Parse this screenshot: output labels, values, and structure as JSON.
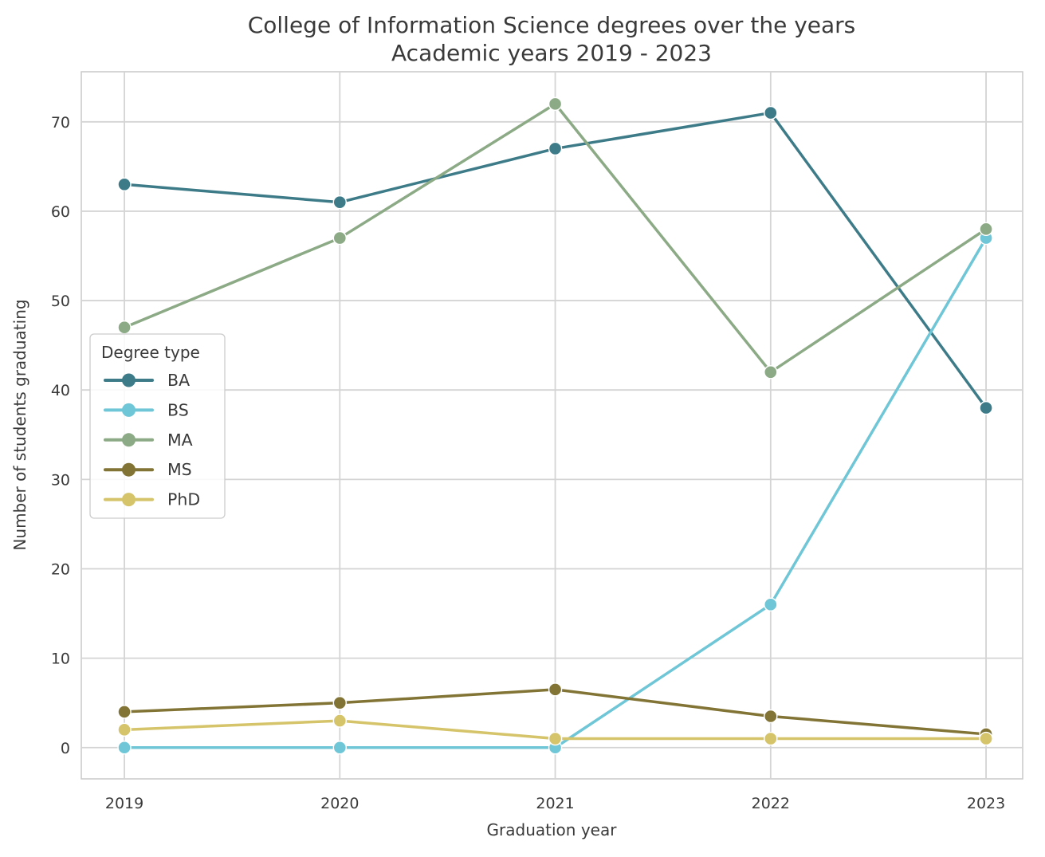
{
  "chart_data": {
    "type": "line",
    "title": "College of Information Science degrees over the years",
    "subtitle": "Academic years 2019 - 2023",
    "xlabel": "Graduation year",
    "ylabel": "Number of students graduating",
    "categories": [
      2019,
      2020,
      2021,
      2022,
      2023
    ],
    "x_tick_labels": [
      "2019",
      "2020",
      "2021",
      "2022",
      "2023"
    ],
    "y_ticks": [
      0,
      10,
      20,
      30,
      40,
      50,
      60,
      70
    ],
    "xlim": [
      2018.8,
      2023.17
    ],
    "ylim": [
      -3.5,
      75.6
    ],
    "grid": true,
    "legend": {
      "title": "Degree type",
      "position": "center left"
    },
    "series": [
      {
        "name": "BA",
        "color": "#3d7b88",
        "marker": "circle",
        "values": [
          63,
          61,
          67,
          71,
          38
        ]
      },
      {
        "name": "BS",
        "color": "#6fc6d6",
        "marker": "circle",
        "values": [
          0,
          0,
          0,
          16,
          57
        ]
      },
      {
        "name": "MA",
        "color": "#8caa85",
        "marker": "circle",
        "values": [
          47,
          57,
          72,
          42,
          58
        ]
      },
      {
        "name": "MS",
        "color": "#817435",
        "marker": "circle",
        "values": [
          4,
          5,
          6.5,
          3.5,
          1.5
        ]
      },
      {
        "name": "PhD",
        "color": "#d5c46a",
        "marker": "circle",
        "values": [
          2,
          3,
          1,
          1,
          1
        ]
      }
    ]
  },
  "colors": {
    "grid": "#d4d4d4",
    "spine": "#c9c9c9",
    "text": "#3a3a3a",
    "background": "#ffffff",
    "legend_border": "#cccccc",
    "legend_background": "#ffffff"
  }
}
